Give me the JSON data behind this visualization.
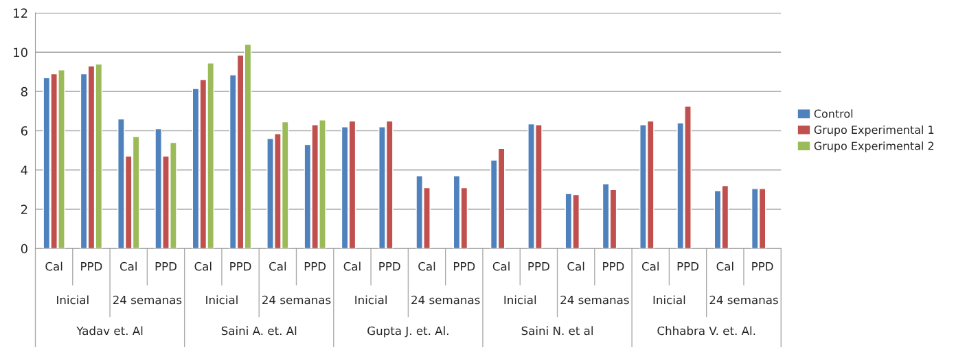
{
  "chart_data": {
    "type": "bar",
    "categories": [
      "Cal",
      "PPD",
      "Cal",
      "PPD",
      "Cal",
      "PPD",
      "Cal",
      "PPD",
      "Cal",
      "PPD",
      "Cal",
      "PPD",
      "Cal",
      "PPD",
      "Cal",
      "PPD",
      "Cal",
      "PPD",
      "Cal",
      "PPD"
    ],
    "series": [
      {
        "name": "Control",
        "color": "#4f81bd",
        "values": [
          8.7,
          8.9,
          6.6,
          6.1,
          8.15,
          8.85,
          5.6,
          5.3,
          6.2,
          6.2,
          3.7,
          3.7,
          4.5,
          6.35,
          2.8,
          3.3,
          6.3,
          6.4,
          2.95,
          3.05
        ]
      },
      {
        "name": "Grupo Experimental 1",
        "color": "#c0504d",
        "values": [
          8.9,
          9.3,
          4.7,
          4.7,
          8.6,
          9.85,
          5.85,
          6.3,
          6.5,
          6.5,
          3.1,
          3.1,
          5.1,
          6.3,
          2.75,
          3.0,
          6.5,
          7.25,
          3.2,
          3.05
        ]
      },
      {
        "name": "Grupo Experimental 2",
        "color": "#9bbb59",
        "values": [
          9.1,
          9.4,
          5.7,
          5.4,
          9.45,
          10.4,
          6.45,
          6.55,
          null,
          null,
          null,
          null,
          null,
          null,
          null,
          null,
          null,
          null,
          null,
          null
        ]
      }
    ],
    "annotations": [
      "Inicial",
      "24 semanas",
      "Inicial",
      "24 semanas",
      "Inicial",
      "24 semanas",
      "Inicial",
      "24 semanas",
      "Inicial",
      "24 semanas",
      "Yadav et. Al",
      "Saini A. et. Al",
      "Gupta J. et. Al.",
      "Saini N. et al",
      "Chhabra V. et. Al."
    ],
    "ylim": [
      0,
      12
    ],
    "yticks": [
      0,
      2,
      4,
      6,
      8,
      10,
      12
    ],
    "grid": "y",
    "legend": "right"
  }
}
